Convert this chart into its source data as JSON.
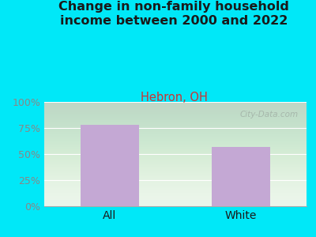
{
  "title": "Change in non-family household\nincome between 2000 and 2022",
  "subtitle": "Hebron, OH",
  "categories": [
    "All",
    "White"
  ],
  "values": [
    78,
    57
  ],
  "bar_color": "#c4a8d4",
  "title_fontsize": 11.5,
  "subtitle_fontsize": 10.5,
  "subtitle_color": "#cc3333",
  "title_color": "#1a1a1a",
  "tick_color": "#888888",
  "background_outer": "#00e8f8",
  "ylim": [
    0,
    100
  ],
  "yticks": [
    0,
    25,
    50,
    75,
    100
  ],
  "ytick_labels": [
    "0%",
    "25%",
    "50%",
    "75%",
    "100%"
  ],
  "bar_width": 0.45,
  "watermark": "City-Data.com"
}
